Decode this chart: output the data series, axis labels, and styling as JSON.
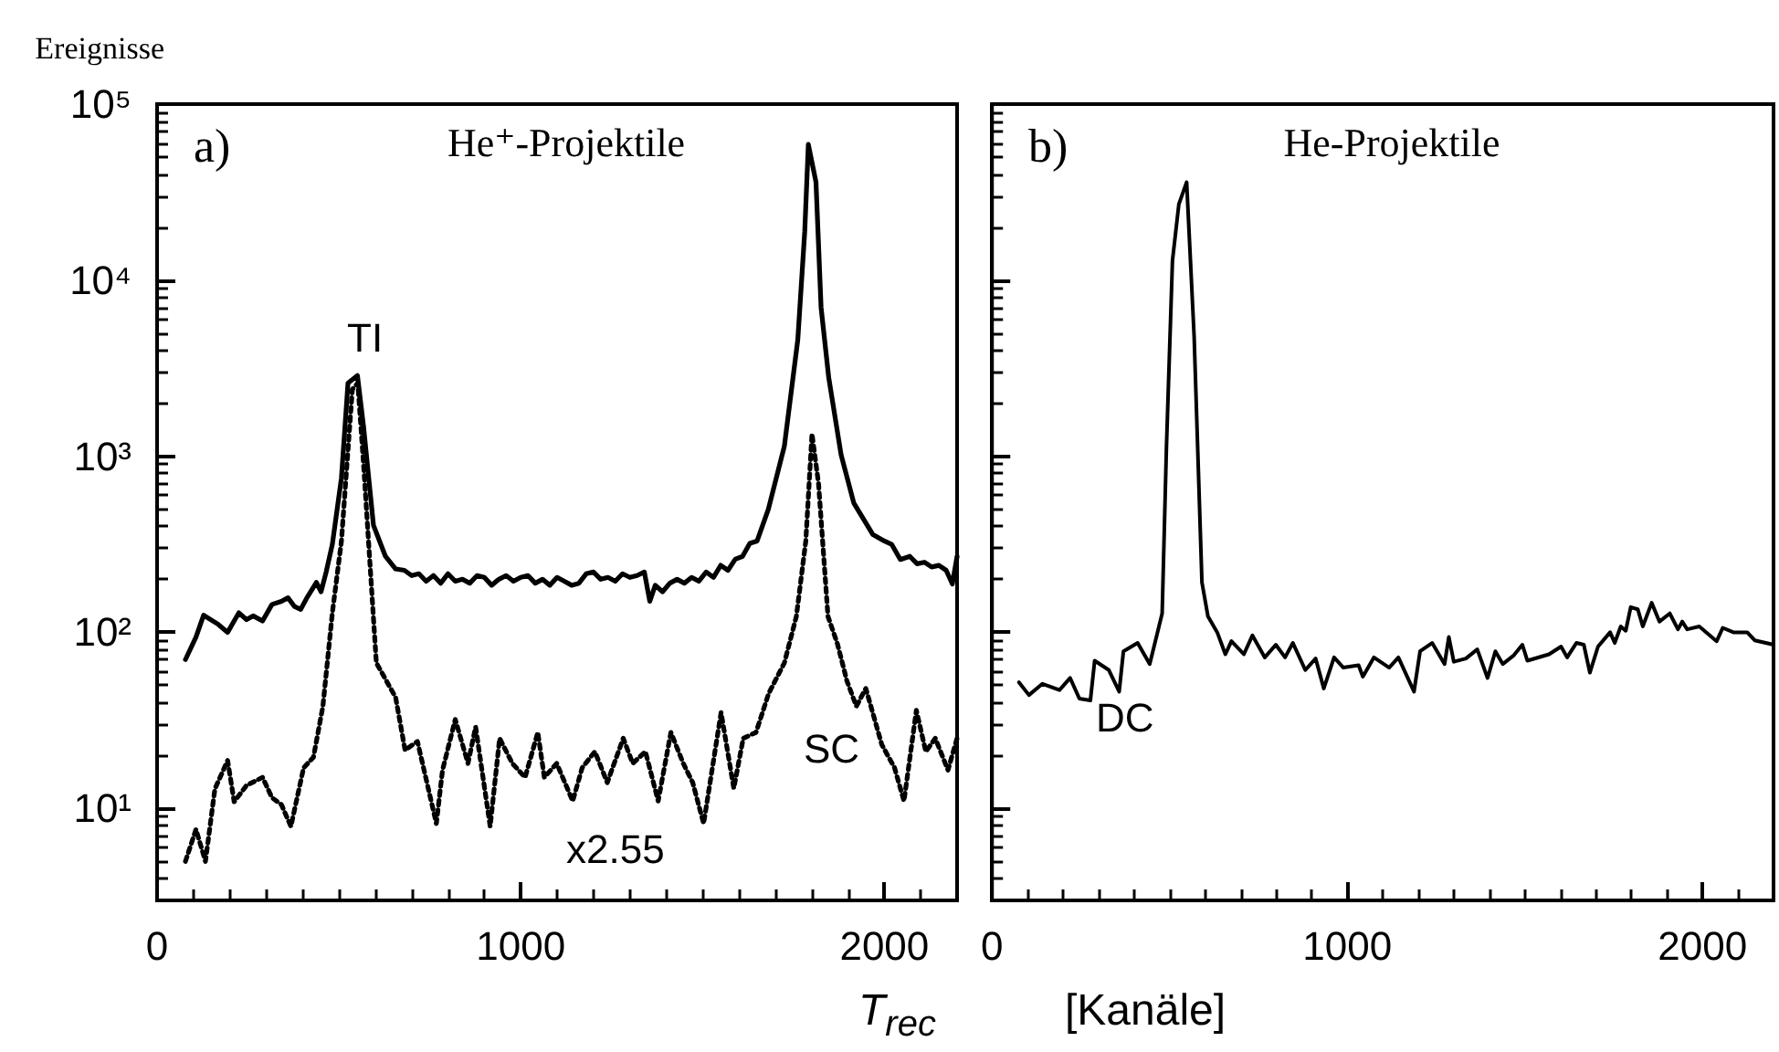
{
  "chart_data": [
    {
      "type": "line",
      "title": "He⁺-Projektile",
      "xlabel": "T$_{rec}$",
      "ylabel": "Ereignisse",
      "log": "y",
      "xlim": [
        0,
        2200
      ],
      "xticks": [
        0,
        1000,
        2000
      ],
      "ylim": [
        3,
        100000
      ],
      "yticks": [
        {
          "value": 10,
          "label": "10¹"
        },
        {
          "value": 100,
          "label": "10²"
        },
        {
          "value": 1000,
          "label": "10³"
        },
        {
          "value": 10000,
          "label": "10⁴"
        },
        {
          "value": 100000,
          "label": "10⁵"
        }
      ],
      "annotations": [
        "a)",
        "TI",
        "SC",
        "x2.55"
      ],
      "series": [
        {
          "color": "#000000",
          "line_style": "solid",
          "x": [
            78,
            107,
            128,
            168,
            194,
            225,
            246,
            264,
            290,
            316,
            342,
            360,
            378,
            395,
            412,
            438,
            451,
            465,
            482,
            507,
            525,
            551,
            568,
            595,
            628,
            656,
            680,
            700,
            720,
            740,
            760,
            780,
            800,
            820,
            840,
            860,
            880,
            900,
            920,
            940,
            960,
            980,
            1000,
            1020,
            1040,
            1060,
            1080,
            1100,
            1120,
            1140,
            1160,
            1180,
            1200,
            1220,
            1240,
            1260,
            1280,
            1300,
            1320,
            1340,
            1355,
            1370,
            1390,
            1410,
            1430,
            1450,
            1470,
            1490,
            1510,
            1530,
            1550,
            1570,
            1590,
            1610,
            1630,
            1650,
            1681,
            1725,
            1762,
            1781,
            1791,
            1812,
            1826,
            1847,
            1881,
            1916,
            1968,
            2000,
            2020,
            2044,
            2070,
            2090,
            2110,
            2130,
            2150,
            2170,
            2187,
            2200
          ],
          "values": [
            70,
            94,
            125,
            111,
            100,
            129,
            118,
            124,
            116,
            144,
            150,
            157,
            140,
            135,
            157,
            192,
            170,
            220,
            316,
            754,
            2600,
            2870,
            1460,
            406,
            270,
            229,
            225,
            210,
            215,
            195,
            210,
            190,
            215,
            195,
            200,
            190,
            210,
            205,
            185,
            200,
            210,
            195,
            205,
            210,
            190,
            200,
            185,
            205,
            195,
            185,
            190,
            215,
            220,
            200,
            205,
            195,
            215,
            205,
            210,
            220,
            150,
            185,
            170,
            190,
            200,
            190,
            205,
            195,
            220,
            205,
            240,
            225,
            260,
            270,
            320,
            330,
            500,
            1140,
            4600,
            18800,
            59000,
            36000,
            7000,
            2800,
            1020,
            542,
            360,
            330,
            316,
            259,
            270,
            245,
            250,
            235,
            240,
            225,
            188,
            270
          ]
        },
        {
          "color": "#000000",
          "line_style": "dotted",
          "x": [
            78,
            107,
            133,
            159,
            194,
            212,
            246,
            290,
            316,
            342,
            368,
            403,
            430,
            456,
            482,
            507,
            537,
            552,
            568,
            603,
            656,
            682,
            716,
            768,
            785,
            820,
            855,
            876,
            916,
            942,
            977,
            1012,
            1047,
            1065,
            1099,
            1143,
            1169,
            1204,
            1238,
            1282,
            1308,
            1343,
            1378,
            1413,
            1447,
            1473,
            1503,
            1551,
            1586,
            1612,
            1647,
            1682,
            1725,
            1758,
            1784,
            1801,
            1819,
            1845,
            1871,
            1897,
            1923,
            1949,
            1993,
            2028,
            2054,
            2088,
            2114,
            2140,
            2175,
            2200
          ],
          "values": [
            5,
            7.6,
            5,
            12.9,
            18.7,
            10.9,
            13.5,
            15,
            11.5,
            10.5,
            7.9,
            17,
            19.5,
            38,
            129,
            330,
            2400,
            2600,
            890,
            67,
            42.7,
            21.4,
            24,
            8.2,
            16.5,
            32,
            18,
            29,
            7.9,
            25,
            18,
            15,
            27,
            15,
            18,
            11,
            17,
            21,
            14,
            25,
            18,
            21,
            11,
            27,
            18,
            14,
            8.2,
            35,
            13,
            25,
            27,
            45,
            67,
            123,
            330,
            1340,
            700,
            123,
            86,
            53,
            38,
            48,
            23,
            17,
            11,
            36,
            21,
            25,
            16.5,
            25
          ]
        }
      ]
    },
    {
      "type": "line",
      "title": "He-Projektile",
      "xlabel": "[Kanäle]",
      "log": "y",
      "tick_labels": "x",
      "xlim": [
        0,
        2200
      ],
      "xticks": [
        0,
        1000,
        2000
      ],
      "ylim": [
        3,
        100000
      ],
      "yticks": [
        {
          "value": 10,
          "label": null
        },
        {
          "value": 100,
          "label": null
        },
        {
          "value": 1000,
          "label": null
        },
        {
          "value": 10000,
          "label": null
        },
        {
          "value": 100000,
          "label": null
        }
      ],
      "annotations": [
        "b)",
        "DC"
      ],
      "series": [
        {
          "color": "#000000",
          "line_style": "solid",
          "x": [
            76,
            104,
            142,
            190,
            220,
            246,
            277,
            289,
            329,
            358,
            370,
            410,
            444,
            479,
            491,
            508,
            526,
            548,
            569,
            591,
            608,
            634,
            657,
            674,
            709,
            733,
            768,
            799,
            825,
            847,
            882,
            911,
            934,
            963,
            989,
            1032,
            1044,
            1075,
            1118,
            1144,
            1188,
            1205,
            1239,
            1274,
            1286,
            1300,
            1334,
            1366,
            1395,
            1417,
            1438,
            1469,
            1493,
            1507,
            1568,
            1602,
            1619,
            1645,
            1666,
            1683,
            1706,
            1740,
            1753,
            1770,
            1784,
            1798,
            1818,
            1832,
            1857,
            1879,
            1908,
            1931,
            1943,
            1957,
            1991,
            2040,
            2057,
            2087,
            2126,
            2147,
            2178,
            2200
          ],
          "values": [
            52,
            44,
            51,
            47,
            55,
            42,
            41,
            69,
            61,
            46,
            78,
            87,
            66,
            128,
            1110,
            12900,
            27000,
            36000,
            4800,
            192,
            123,
            100,
            75,
            89,
            75,
            96,
            72,
            85,
            72,
            87,
            61,
            71,
            48,
            72,
            63,
            65,
            56,
            72,
            63,
            72,
            46,
            78,
            87,
            66,
            94,
            68,
            71,
            80,
            55,
            78,
            66,
            74,
            85,
            69,
            75,
            83,
            72,
            87,
            85,
            59,
            83,
            100,
            87,
            108,
            102,
            139,
            135,
            108,
            147,
            115,
            128,
            104,
            115,
            104,
            108,
            89,
            106,
            100,
            100,
            90,
            87,
            85
          ]
        }
      ]
    }
  ]
}
